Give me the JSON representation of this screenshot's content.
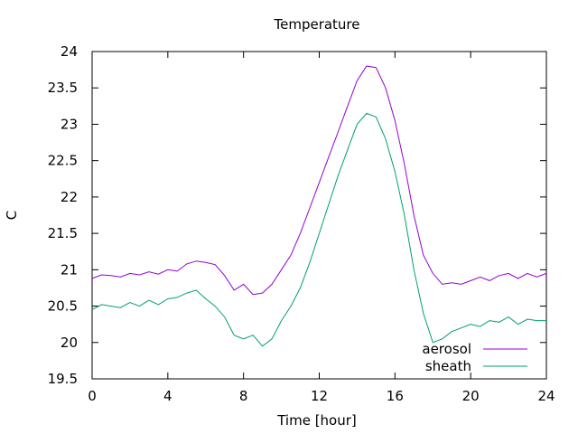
{
  "chart_data": {
    "type": "line",
    "title": "Temperature",
    "xlabel": "Time [hour]",
    "ylabel": "C",
    "xlim": [
      0,
      24
    ],
    "ylim": [
      19.5,
      24
    ],
    "xticks": [
      0,
      4,
      8,
      12,
      16,
      20,
      24
    ],
    "xtick_labels": [
      "0",
      "4",
      "8",
      "12",
      "16",
      "20",
      "24"
    ],
    "yticks": [
      19.5,
      20,
      20.5,
      21,
      21.5,
      22,
      22.5,
      23,
      23.5,
      24
    ],
    "ytick_labels": [
      "19.5",
      "20",
      "20.5",
      "21",
      "21.5",
      "22",
      "22.5",
      "23",
      "23.5",
      "24"
    ],
    "grid": false,
    "legend_position": "bottom-right",
    "x": [
      0,
      0.5,
      1,
      1.5,
      2,
      2.5,
      3,
      3.5,
      4,
      4.5,
      5,
      5.5,
      6,
      6.5,
      7,
      7.5,
      8,
      8.5,
      9,
      9.5,
      10,
      10.5,
      11,
      11.5,
      12,
      12.5,
      13,
      13.5,
      14,
      14.5,
      15,
      15.5,
      16,
      16.5,
      17,
      17.5,
      18,
      18.5,
      19,
      19.5,
      20,
      20.5,
      21,
      21.5,
      22,
      22.5,
      23,
      23.5,
      24
    ],
    "series": [
      {
        "name": "aerosol",
        "color": "#9400d3",
        "values": [
          20.88,
          20.93,
          20.92,
          20.9,
          20.95,
          20.93,
          20.97,
          20.94,
          21.0,
          20.98,
          21.08,
          21.12,
          21.1,
          21.07,
          20.92,
          20.72,
          20.8,
          20.66,
          20.68,
          20.8,
          21.0,
          21.2,
          21.5,
          21.85,
          22.2,
          22.55,
          22.9,
          23.25,
          23.6,
          23.8,
          23.78,
          23.5,
          23.05,
          22.45,
          21.75,
          21.2,
          20.95,
          20.8,
          20.82,
          20.8,
          20.85,
          20.9,
          20.85,
          20.92,
          20.95,
          20.88,
          20.95,
          20.9,
          20.95
        ]
      },
      {
        "name": "sheath",
        "color": "#009e73",
        "values": [
          20.45,
          20.52,
          20.5,
          20.48,
          20.55,
          20.5,
          20.58,
          20.52,
          20.6,
          20.62,
          20.68,
          20.72,
          20.6,
          20.5,
          20.35,
          20.1,
          20.05,
          20.1,
          19.95,
          20.05,
          20.3,
          20.5,
          20.75,
          21.1,
          21.5,
          21.9,
          22.3,
          22.65,
          23.0,
          23.15,
          23.1,
          22.8,
          22.35,
          21.75,
          21.0,
          20.4,
          20.0,
          20.05,
          20.15,
          20.2,
          20.25,
          20.22,
          20.3,
          20.28,
          20.35,
          20.25,
          20.32,
          20.3,
          20.3
        ]
      }
    ]
  }
}
